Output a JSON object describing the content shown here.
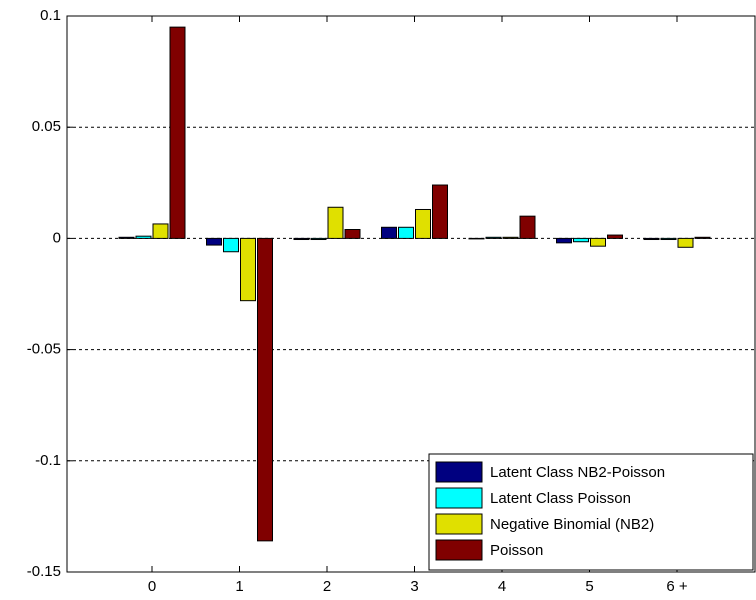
{
  "chart_data": {
    "type": "bar",
    "categories": [
      "0",
      "1",
      "2",
      "3",
      "4",
      "5",
      "6 +"
    ],
    "series": [
      {
        "name": "Latent Class NB2-Poisson",
        "color": "#000080",
        "values": [
          0.0005,
          -0.003,
          -0.0005,
          0.005,
          0,
          -0.002,
          -0.0005
        ]
      },
      {
        "name": "Latent Class Poisson",
        "color": "#00ffff",
        "values": [
          0.001,
          -0.006,
          -0.0005,
          0.005,
          0.0005,
          -0.0015,
          -0.0005
        ]
      },
      {
        "name": "Negative Binomial (NB2)",
        "color": "#e0e000",
        "values": [
          0.0065,
          -0.028,
          0.014,
          0.013,
          0.0005,
          -0.0035,
          -0.004
        ]
      },
      {
        "name": "Poisson",
        "color": "#800000",
        "values": [
          0.095,
          -0.136,
          0.004,
          0.024,
          0.01,
          0.0015,
          0.0005
        ]
      }
    ],
    "ylim": [
      -0.15,
      0.1
    ],
    "yticks": [
      -0.15,
      -0.1,
      -0.05,
      0,
      0.05,
      0.1
    ],
    "grid": true,
    "legend": "lower right"
  }
}
